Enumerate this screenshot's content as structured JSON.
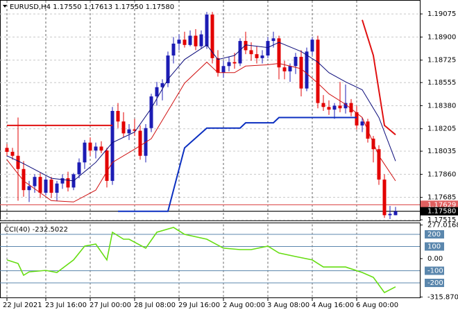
{
  "chart_data": [
    {
      "type": "candlestick",
      "title": "EURUSD,H4  1.17550 1.17613 1.17550 1.17580",
      "bull_color": "#1c1cb4",
      "bear_color": "#e30000",
      "grid": true,
      "xlim": [
        -1.25,
        74.375
      ],
      "ylim": [
        1.1751,
        1.1917
      ],
      "yticks": [
        1.19075,
        {
          "value": 1.189,
          "label": "1.18900"
        },
        1.18725,
        1.18555,
        {
          "value": 1.1838,
          "label": "1.18380"
        },
        1.18205,
        1.18035,
        {
          "value": 1.1786,
          "label": "1.17860"
        },
        1.17685,
        1.17515
      ],
      "xticks": [
        {
          "value": 0,
          "label": "22 Jul 2021"
        },
        {
          "value": 7,
          "label": "23 Jul 16:00"
        },
        {
          "value": 15,
          "label": "27 Jul 00:00"
        },
        {
          "value": 23,
          "label": "28 Jul 08:00"
        },
        {
          "value": 31,
          "label": "29 Jul 16:00"
        },
        {
          "value": 39,
          "label": "2 Aug 00:00"
        },
        {
          "value": 47,
          "label": "3 Aug 08:00"
        },
        {
          "value": 55,
          "label": "4 Aug 16:00"
        },
        {
          "value": 63,
          "label": "6 Aug 00:00"
        }
      ],
      "ohlc": [
        [
          1.1806,
          1.1809,
          1.18,
          1.1803
        ],
        [
          1.1803,
          1.1806,
          1.1797,
          1.18
        ],
        [
          1.18,
          1.1829,
          1.1766,
          1.179
        ],
        [
          1.179,
          1.1796,
          1.1769,
          1.1774
        ],
        [
          1.1774,
          1.1781,
          1.1765,
          1.1777
        ],
        [
          1.1777,
          1.1786,
          1.1772,
          1.1784
        ],
        [
          1.1784,
          1.1787,
          1.1768,
          1.1772
        ],
        [
          1.1772,
          1.1784,
          1.177,
          1.1782
        ],
        [
          1.1782,
          1.1784,
          1.1768,
          1.1772
        ],
        [
          1.1772,
          1.1781,
          1.1766,
          1.1779
        ],
        [
          1.1779,
          1.1786,
          1.1775,
          1.1783
        ],
        [
          1.1783,
          1.1788,
          1.1773,
          1.1776
        ],
        [
          1.1776,
          1.1787,
          1.1774,
          1.1786
        ],
        [
          1.1786,
          1.1798,
          1.1783,
          1.1795
        ],
        [
          1.1795,
          1.1812,
          1.179,
          1.181
        ],
        [
          1.181,
          1.1814,
          1.18,
          1.1804
        ],
        [
          1.1804,
          1.181,
          1.1798,
          1.1807
        ],
        [
          1.1807,
          1.1811,
          1.1802,
          1.1804
        ],
        [
          1.1804,
          1.1806,
          1.1776,
          1.1781
        ],
        [
          1.1781,
          1.1837,
          1.1778,
          1.1834
        ],
        [
          1.1834,
          1.184,
          1.1821,
          1.1826
        ],
        [
          1.1826,
          1.1833,
          1.1814,
          1.1817
        ],
        [
          1.1817,
          1.1824,
          1.1812,
          1.182
        ],
        [
          1.182,
          1.1828,
          1.1815,
          1.1819
        ],
        [
          1.1819,
          1.1823,
          1.1797,
          1.18
        ],
        [
          1.18,
          1.1824,
          1.1795,
          1.1821
        ],
        [
          1.1821,
          1.1847,
          1.1818,
          1.1845
        ],
        [
          1.1845,
          1.1856,
          1.1838,
          1.1852
        ],
        [
          1.1852,
          1.1858,
          1.1842,
          1.1855
        ],
        [
          1.1855,
          1.1879,
          1.1852,
          1.1876
        ],
        [
          1.1876,
          1.189,
          1.187,
          1.1885
        ],
        [
          1.1885,
          1.1892,
          1.188,
          1.1888
        ],
        [
          1.1888,
          1.1894,
          1.1882,
          1.1884
        ],
        [
          1.1884,
          1.1895,
          1.1883,
          1.1891
        ],
        [
          1.1891,
          1.1896,
          1.188,
          1.1883
        ],
        [
          1.1883,
          1.1895,
          1.1881,
          1.1892
        ],
        [
          1.1883,
          1.1909,
          1.1881,
          1.1907
        ],
        [
          1.1907,
          1.1909,
          1.187,
          1.1874
        ],
        [
          1.1874,
          1.188,
          1.186,
          1.1863
        ],
        [
          1.1863,
          1.1872,
          1.1859,
          1.1868
        ],
        [
          1.1868,
          1.1875,
          1.1864,
          1.1871
        ],
        [
          1.1871,
          1.1878,
          1.1866,
          1.187
        ],
        [
          1.187,
          1.1889,
          1.1868,
          1.1887
        ],
        [
          1.1887,
          1.1894,
          1.1877,
          1.188
        ],
        [
          1.188,
          1.1886,
          1.1872,
          1.1877
        ],
        [
          1.1877,
          1.1883,
          1.187,
          1.1874
        ],
        [
          1.1874,
          1.188,
          1.187,
          1.1876
        ],
        [
          1.1876,
          1.189,
          1.1874,
          1.1887
        ],
        [
          1.1887,
          1.1894,
          1.1882,
          1.1889
        ],
        [
          1.1889,
          1.1891,
          1.1858,
          1.1867
        ],
        [
          1.1867,
          1.1872,
          1.1858,
          1.1864
        ],
        [
          1.1864,
          1.187,
          1.1856,
          1.1868
        ],
        [
          1.1868,
          1.1878,
          1.1862,
          1.1875
        ],
        [
          1.1875,
          1.188,
          1.1845,
          1.1851
        ],
        [
          1.1851,
          1.1882,
          1.1849,
          1.1879
        ],
        [
          1.1879,
          1.189,
          1.1876,
          1.1888
        ],
        [
          1.1888,
          1.1891,
          1.1836,
          1.184
        ],
        [
          1.184,
          1.1846,
          1.1834,
          1.1837
        ],
        [
          1.1837,
          1.1842,
          1.1831,
          1.1835
        ],
        [
          1.1835,
          1.184,
          1.1828,
          1.1838
        ],
        [
          1.1838,
          1.1856,
          1.1833,
          1.1836
        ],
        [
          1.1836,
          1.1854,
          1.1832,
          1.184
        ],
        [
          1.184,
          1.1843,
          1.183,
          1.1833
        ],
        [
          1.1833,
          1.1838,
          1.182,
          1.1823
        ],
        [
          1.1823,
          1.1829,
          1.1818,
          1.1826
        ],
        [
          1.1826,
          1.1828,
          1.181,
          1.1813
        ],
        [
          1.1813,
          1.1815,
          1.1795,
          1.1805
        ],
        [
          1.1805,
          1.1808,
          1.1778,
          1.1782
        ],
        [
          1.1782,
          1.1786,
          1.1753,
          1.1755
        ],
        [
          1.1755,
          1.1762,
          1.1752,
          1.1756
        ],
        [
          1.1755,
          1.17613,
          1.1755,
          1.1758
        ]
      ],
      "lines": [
        {
          "color": "#0a0a7a",
          "width": 1,
          "x": [
            0,
            3,
            8,
            12,
            16,
            19,
            23,
            26,
            29,
            32,
            36,
            38,
            41,
            43,
            47,
            49,
            53,
            56,
            58,
            61,
            64,
            67,
            70
          ],
          "values": [
            1.18,
            1.1794,
            1.1783,
            1.1781,
            1.1795,
            1.181,
            1.1818,
            1.1836,
            1.1858,
            1.1873,
            1.1884,
            1.1873,
            1.1876,
            1.1884,
            1.1882,
            1.1886,
            1.1879,
            1.1871,
            1.1863,
            1.1856,
            1.185,
            1.1829,
            1.1796
          ]
        },
        {
          "color": "#d01010",
          "width": 1,
          "x": [
            0,
            3,
            8,
            12,
            16,
            19,
            23,
            26,
            29,
            32,
            36,
            38,
            41,
            43,
            47,
            49,
            53,
            56,
            58,
            61,
            64,
            67,
            70
          ],
          "values": [
            1.1797,
            1.1781,
            1.1766,
            1.1765,
            1.1774,
            1.1795,
            1.1805,
            1.1813,
            1.1834,
            1.1855,
            1.1871,
            1.1863,
            1.1863,
            1.1868,
            1.1869,
            1.187,
            1.1866,
            1.1855,
            1.1847,
            1.1839,
            1.1829,
            1.18,
            1.1781
          ]
        },
        {
          "color": "#0b2fc0",
          "width": 2,
          "x": [
            20,
            29,
            32,
            36,
            42,
            43,
            48,
            49,
            63
          ],
          "values": [
            1.1758,
            1.1758,
            1.1806,
            1.1821,
            1.1821,
            1.1825,
            1.1825,
            1.1829,
            1.1829
          ]
        },
        {
          "color": "#e01010",
          "width": 2,
          "x": [
            0,
            19
          ],
          "values": [
            1.1823,
            1.1823
          ]
        },
        {
          "color": "#e01010",
          "width": 2,
          "x": [
            64,
            66,
            68,
            70
          ],
          "values": [
            1.1903,
            1.1876,
            1.1823,
            1.1816
          ]
        }
      ],
      "price_lines": [
        {
          "value": 1.17629,
          "label": "1.17629",
          "color": "#e06060"
        },
        {
          "value": 1.1758,
          "label": "1.17580",
          "color": "#000000"
        }
      ]
    },
    {
      "type": "line",
      "title": "CCI(40) -232.5022",
      "color": "#66dd11",
      "xlim": [
        -1.25,
        74.375
      ],
      "ylim": [
        -315.8706,
        277.0168
      ],
      "yticks": [
        277.0168,
        {
          "value": 0,
          "label": "0.00"
        },
        -315.8706
      ],
      "levels": [
        200,
        100,
        -100,
        -200
      ],
      "level_color": "#5b87ad",
      "x": [
        0,
        2,
        3,
        4,
        7,
        9,
        12,
        14,
        16,
        18,
        19,
        21,
        22,
        25,
        27,
        30,
        32,
        36,
        39,
        42,
        44,
        47,
        49,
        52,
        55,
        57,
        61,
        64,
        66,
        68,
        70
      ],
      "values": [
        -11,
        -40,
        -137,
        -109,
        -97,
        -114,
        -11,
        103,
        120,
        -11,
        217,
        160,
        160,
        86,
        217,
        257,
        200,
        160,
        86,
        74,
        74,
        103,
        46,
        17,
        -11,
        -69,
        -69,
        -114,
        -154,
        -280,
        -232.5022
      ]
    }
  ]
}
